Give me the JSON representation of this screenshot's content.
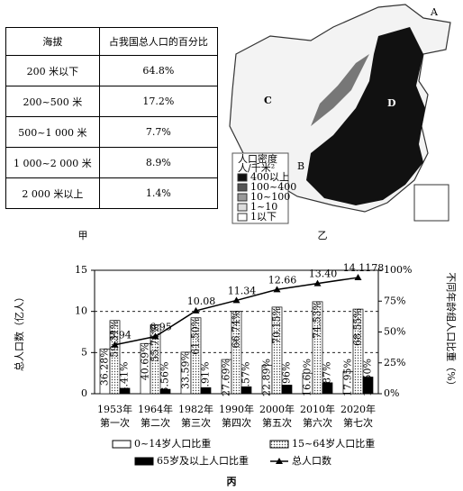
{
  "table": {
    "headers": [
      "海拔",
      "占我国总人口的百分比"
    ],
    "rows": [
      [
        "200 米以下",
        "64.8%"
      ],
      [
        "200~500 米",
        "17.2%"
      ],
      [
        "500~1 000 米",
        "7.7%"
      ],
      [
        "1 000~2 000 米",
        "8.9%"
      ],
      [
        "2 000 米以上",
        "1.4%"
      ]
    ],
    "caption": "甲"
  },
  "map": {
    "caption": "乙",
    "labels": [
      "A",
      "B",
      "C",
      "D"
    ],
    "legend": {
      "title": "人口密度",
      "unit": "人/千米²",
      "items": [
        {
          "label": "400以上",
          "color": "#111111"
        },
        {
          "label": "100~400",
          "color": "#555555"
        },
        {
          "label": "10~100",
          "color": "#999999"
        },
        {
          "label": "1~10",
          "color": "#dddddd"
        },
        {
          "label": "1以下",
          "color": "#ffffff"
        }
      ]
    }
  },
  "chart_data": {
    "type": "bar",
    "caption": "丙",
    "y_label": "总人口数（亿人）",
    "y2_label": "不同年龄组人口比重（%）",
    "categories": [
      "1953年",
      "1964年",
      "1982年",
      "1990年",
      "2000年",
      "2010年",
      "2020年"
    ],
    "category_sublabels": [
      "第一次",
      "第二次",
      "第三次",
      "第四次",
      "第五次",
      "第六次",
      "第七次"
    ],
    "ylim": [
      0,
      15
    ],
    "yticks": [
      0,
      5,
      10,
      15
    ],
    "y2lim": [
      0,
      100
    ],
    "y2ticks": [
      {
        "value": 0,
        "label": "0%"
      },
      {
        "value": 25,
        "label": "25%"
      },
      {
        "value": 50,
        "label": "50%"
      },
      {
        "value": 75,
        "label": "75%"
      },
      {
        "value": 100,
        "label": "100%"
      }
    ],
    "grid": true,
    "series": [
      {
        "name": "0~14岁人口比重",
        "type": "bar",
        "axis": "y2",
        "color": "#ffffff",
        "values": [
          36.28,
          40.69,
          33.59,
          27.69,
          22.89,
          16.6,
          17.95
        ],
        "value_labels": [
          "36.28%",
          "40.69%",
          "33.59%",
          "27.69%",
          "22.89%",
          "16.60%",
          "17.95%"
        ]
      },
      {
        "name": "15~64岁人口比重",
        "type": "bar",
        "axis": "y2",
        "color": "#d0d0d0",
        "values": [
          59.31,
          55.75,
          61.5,
          66.74,
          70.15,
          74.53,
          68.55
        ],
        "value_labels": [
          "59.31%",
          "55.75%",
          "61.50%",
          "66.74%",
          "70.15%",
          "74.53%",
          "68.55%"
        ]
      },
      {
        "name": "65岁及以上人口比重",
        "type": "bar",
        "axis": "y2",
        "color": "#000000",
        "values": [
          4.41,
          3.56,
          4.91,
          5.57,
          6.96,
          8.87,
          13.5
        ],
        "value_labels": [
          "4.41%",
          "3.56%",
          "4.91%",
          "5.57%",
          "6.96%",
          "8.87%",
          "13.50%"
        ]
      },
      {
        "name": "总人口数",
        "type": "line",
        "axis": "y",
        "color": "#000000",
        "values": [
          5.94,
          6.95,
          10.08,
          11.34,
          12.66,
          13.4,
          14.1178
        ],
        "value_labels": [
          "5.94",
          "6.95",
          "10.08",
          "11.34",
          "12.66",
          "13.40",
          "14.1178"
        ]
      }
    ]
  }
}
